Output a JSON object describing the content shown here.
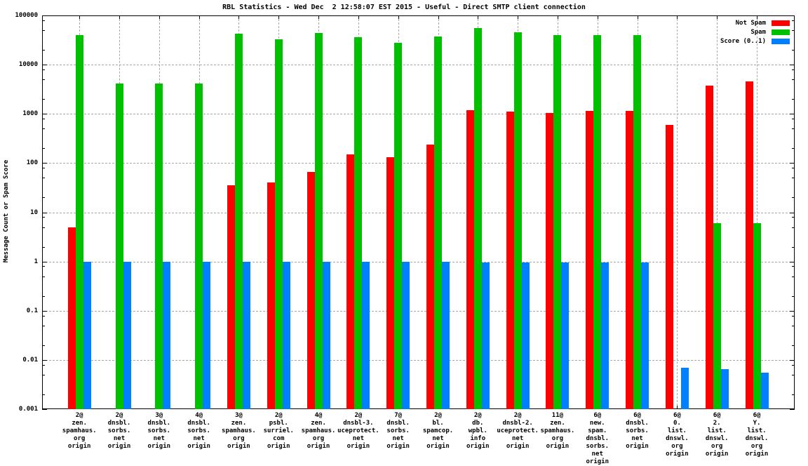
{
  "title": "RBL Statistics - Wed Dec  2 12:58:07 EST 2015 - Useful - Direct SMTP client connection",
  "ylabel": "Message Count or Spam Score",
  "legend": {
    "items": [
      {
        "label": "Not Spam",
        "color": "#ff0000"
      },
      {
        "label": "Spam",
        "color": "#00c000"
      },
      {
        "label": "Score (0..1)",
        "color": "#0080ff"
      }
    ]
  },
  "colors": {
    "not_spam": "#ff0000",
    "spam": "#00c000",
    "score": "#0080ff",
    "grid": "#a8a8a8",
    "axis": "#000000"
  },
  "chart_data": {
    "type": "bar",
    "scale": "log",
    "grid": "dashed horizontal per decade, dashed vertical per category",
    "legend_position": "top-right",
    "ylim": [
      0.001,
      100000
    ],
    "ytick_labels": [
      "100000",
      "10000",
      "1000",
      "100",
      "10",
      "1",
      "0.1",
      "0.01",
      "0.001"
    ],
    "title": "RBL Statistics - Wed Dec  2 12:58:07 EST 2015 - Useful - Direct SMTP client connection",
    "xlabel": "",
    "ylabel": "Message Count or Spam Score",
    "categories": [
      [
        "2@",
        "zen.",
        "spamhaus.",
        "org",
        "origin"
      ],
      [
        "2@",
        "dnsbl.",
        "sorbs.",
        "net",
        "origin"
      ],
      [
        "3@",
        "dnsbl.",
        "sorbs.",
        "net",
        "origin"
      ],
      [
        "4@",
        "dnsbl.",
        "sorbs.",
        "net",
        "origin"
      ],
      [
        "3@",
        "zen.",
        "spamhaus.",
        "org",
        "origin"
      ],
      [
        "2@",
        "psbl.",
        "surriel.",
        "com",
        "origin"
      ],
      [
        "4@",
        "zen.",
        "spamhaus.",
        "org",
        "origin"
      ],
      [
        "2@",
        "dnsbl-3.",
        "uceprotect.",
        "net",
        "origin"
      ],
      [
        "7@",
        "dnsbl.",
        "sorbs.",
        "net",
        "origin"
      ],
      [
        "2@",
        "bl.",
        "spamcop.",
        "net",
        "origin"
      ],
      [
        "2@",
        "db.",
        "wpbl.",
        "info",
        "origin"
      ],
      [
        "2@",
        "dnsbl-2.",
        "uceprotect.",
        "net",
        "origin"
      ],
      [
        "11@",
        "zen.",
        "spamhaus.",
        "org",
        "origin"
      ],
      [
        "6@",
        "new.",
        "spam.",
        "dnsbl.",
        "sorbs.",
        "net",
        "origin"
      ],
      [
        "6@",
        "dnsbl.",
        "sorbs.",
        "net",
        "origin"
      ],
      [
        "6@",
        "0.",
        "list.",
        "dnswl.",
        "org",
        "origin"
      ],
      [
        "6@",
        "2.",
        "list.",
        "dnswl.",
        "org",
        "origin"
      ],
      [
        "6@",
        "Y.",
        "list.",
        "dnswl.",
        "org",
        "origin"
      ]
    ],
    "series": [
      {
        "name": "Not Spam",
        "color": "#ff0000",
        "values": [
          5,
          0,
          0,
          0,
          35,
          40,
          65,
          150,
          130,
          240,
          1200,
          1100,
          1050,
          1150,
          1150,
          600,
          3800,
          4600
        ]
      },
      {
        "name": "Spam",
        "color": "#00c000",
        "values": [
          40000,
          4100,
          4100,
          4100,
          42000,
          33000,
          44000,
          36000,
          28000,
          37000,
          55000,
          45000,
          40000,
          40000,
          40000,
          0,
          6,
          6
        ]
      },
      {
        "name": "Score (0..1)",
        "color": "#0080ff",
        "values": [
          1,
          1,
          1,
          1,
          1,
          1,
          1,
          1,
          1,
          1,
          0.95,
          0.95,
          0.95,
          0.95,
          0.95,
          0.007,
          0.0065,
          0.0055
        ]
      }
    ]
  }
}
